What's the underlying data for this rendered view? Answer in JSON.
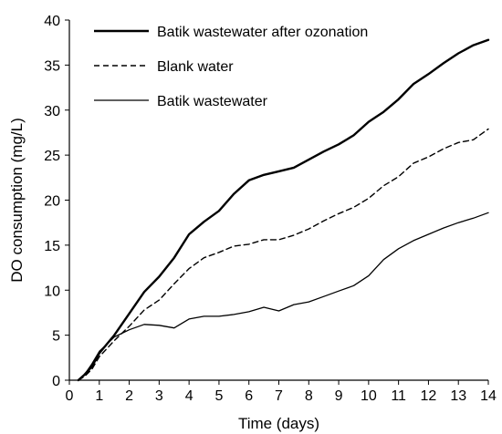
{
  "chart_data": {
    "type": "line",
    "title": "",
    "xlabel": "Time (days)",
    "ylabel": "DO consumption (mg/L)",
    "xlim": [
      0,
      14
    ],
    "ylim": [
      0,
      40
    ],
    "xticks": [
      "0",
      "1",
      "2",
      "3",
      "4",
      "5",
      "6",
      "7",
      "8",
      "9",
      "10",
      "11",
      "12",
      "13",
      "14"
    ],
    "yticks": [
      "0",
      "5",
      "10",
      "15",
      "20",
      "25",
      "30",
      "35",
      "40"
    ],
    "grid": false,
    "legend_position": "top-left",
    "series": [
      {
        "name": "Batik wastewater after ozonation",
        "style": "thick-solid",
        "color": "#000000",
        "x": [
          0.3,
          0.5,
          0.75,
          1,
          1.5,
          2,
          2.5,
          3,
          3.5,
          4,
          4.5,
          5,
          5.5,
          6,
          6.5,
          7,
          7.5,
          8,
          8.5,
          9,
          9.5,
          10,
          10.5,
          11,
          11.5,
          12,
          12.5,
          13,
          13.5,
          14
        ],
        "y": [
          0,
          0.6,
          1.5,
          3.0,
          5.0,
          7.4,
          9.8,
          11.5,
          13.6,
          16.2,
          17.6,
          18.8,
          20.7,
          22.2,
          22.8,
          23.2,
          23.6,
          24.5,
          25.4,
          26.2,
          27.2,
          28.7,
          29.8,
          31.2,
          32.9,
          34.0,
          35.2,
          36.3,
          37.2,
          37.8
        ]
      },
      {
        "name": "Blank water",
        "style": "dashed",
        "color": "#000000",
        "x": [
          0.3,
          0.5,
          0.75,
          1,
          1.5,
          2,
          2.5,
          3,
          3.5,
          4,
          4.5,
          5,
          5.5,
          6,
          6.5,
          7,
          7.5,
          8,
          8.5,
          9,
          9.5,
          10,
          10.5,
          11,
          11.5,
          12,
          12.5,
          13,
          13.5,
          14
        ],
        "y": [
          0,
          0.4,
          1.2,
          2.6,
          4.4,
          6.0,
          7.8,
          8.9,
          10.7,
          12.4,
          13.6,
          14.2,
          14.9,
          15.1,
          15.6,
          15.6,
          16.1,
          16.8,
          17.7,
          18.5,
          19.2,
          20.2,
          21.6,
          22.6,
          24.1,
          24.8,
          25.7,
          26.4,
          26.7,
          27.9
        ]
      },
      {
        "name": "Batik wastewater",
        "style": "thin-solid",
        "color": "#000000",
        "x": [
          0.3,
          0.5,
          0.75,
          1,
          1.5,
          2,
          2.5,
          3,
          3.5,
          4,
          4.5,
          5,
          5.5,
          6,
          6.5,
          7,
          7.5,
          8,
          8.5,
          9,
          9.5,
          10,
          10.5,
          11,
          11.5,
          12,
          12.5,
          13,
          13.5,
          14
        ],
        "y": [
          0,
          0.6,
          1.8,
          3.2,
          4.8,
          5.6,
          6.2,
          6.1,
          5.8,
          6.8,
          7.1,
          7.1,
          7.3,
          7.6,
          8.1,
          7.7,
          8.4,
          8.7,
          9.3,
          9.9,
          10.5,
          11.6,
          13.4,
          14.6,
          15.5,
          16.2,
          16.9,
          17.5,
          18.0,
          18.6
        ]
      }
    ]
  }
}
